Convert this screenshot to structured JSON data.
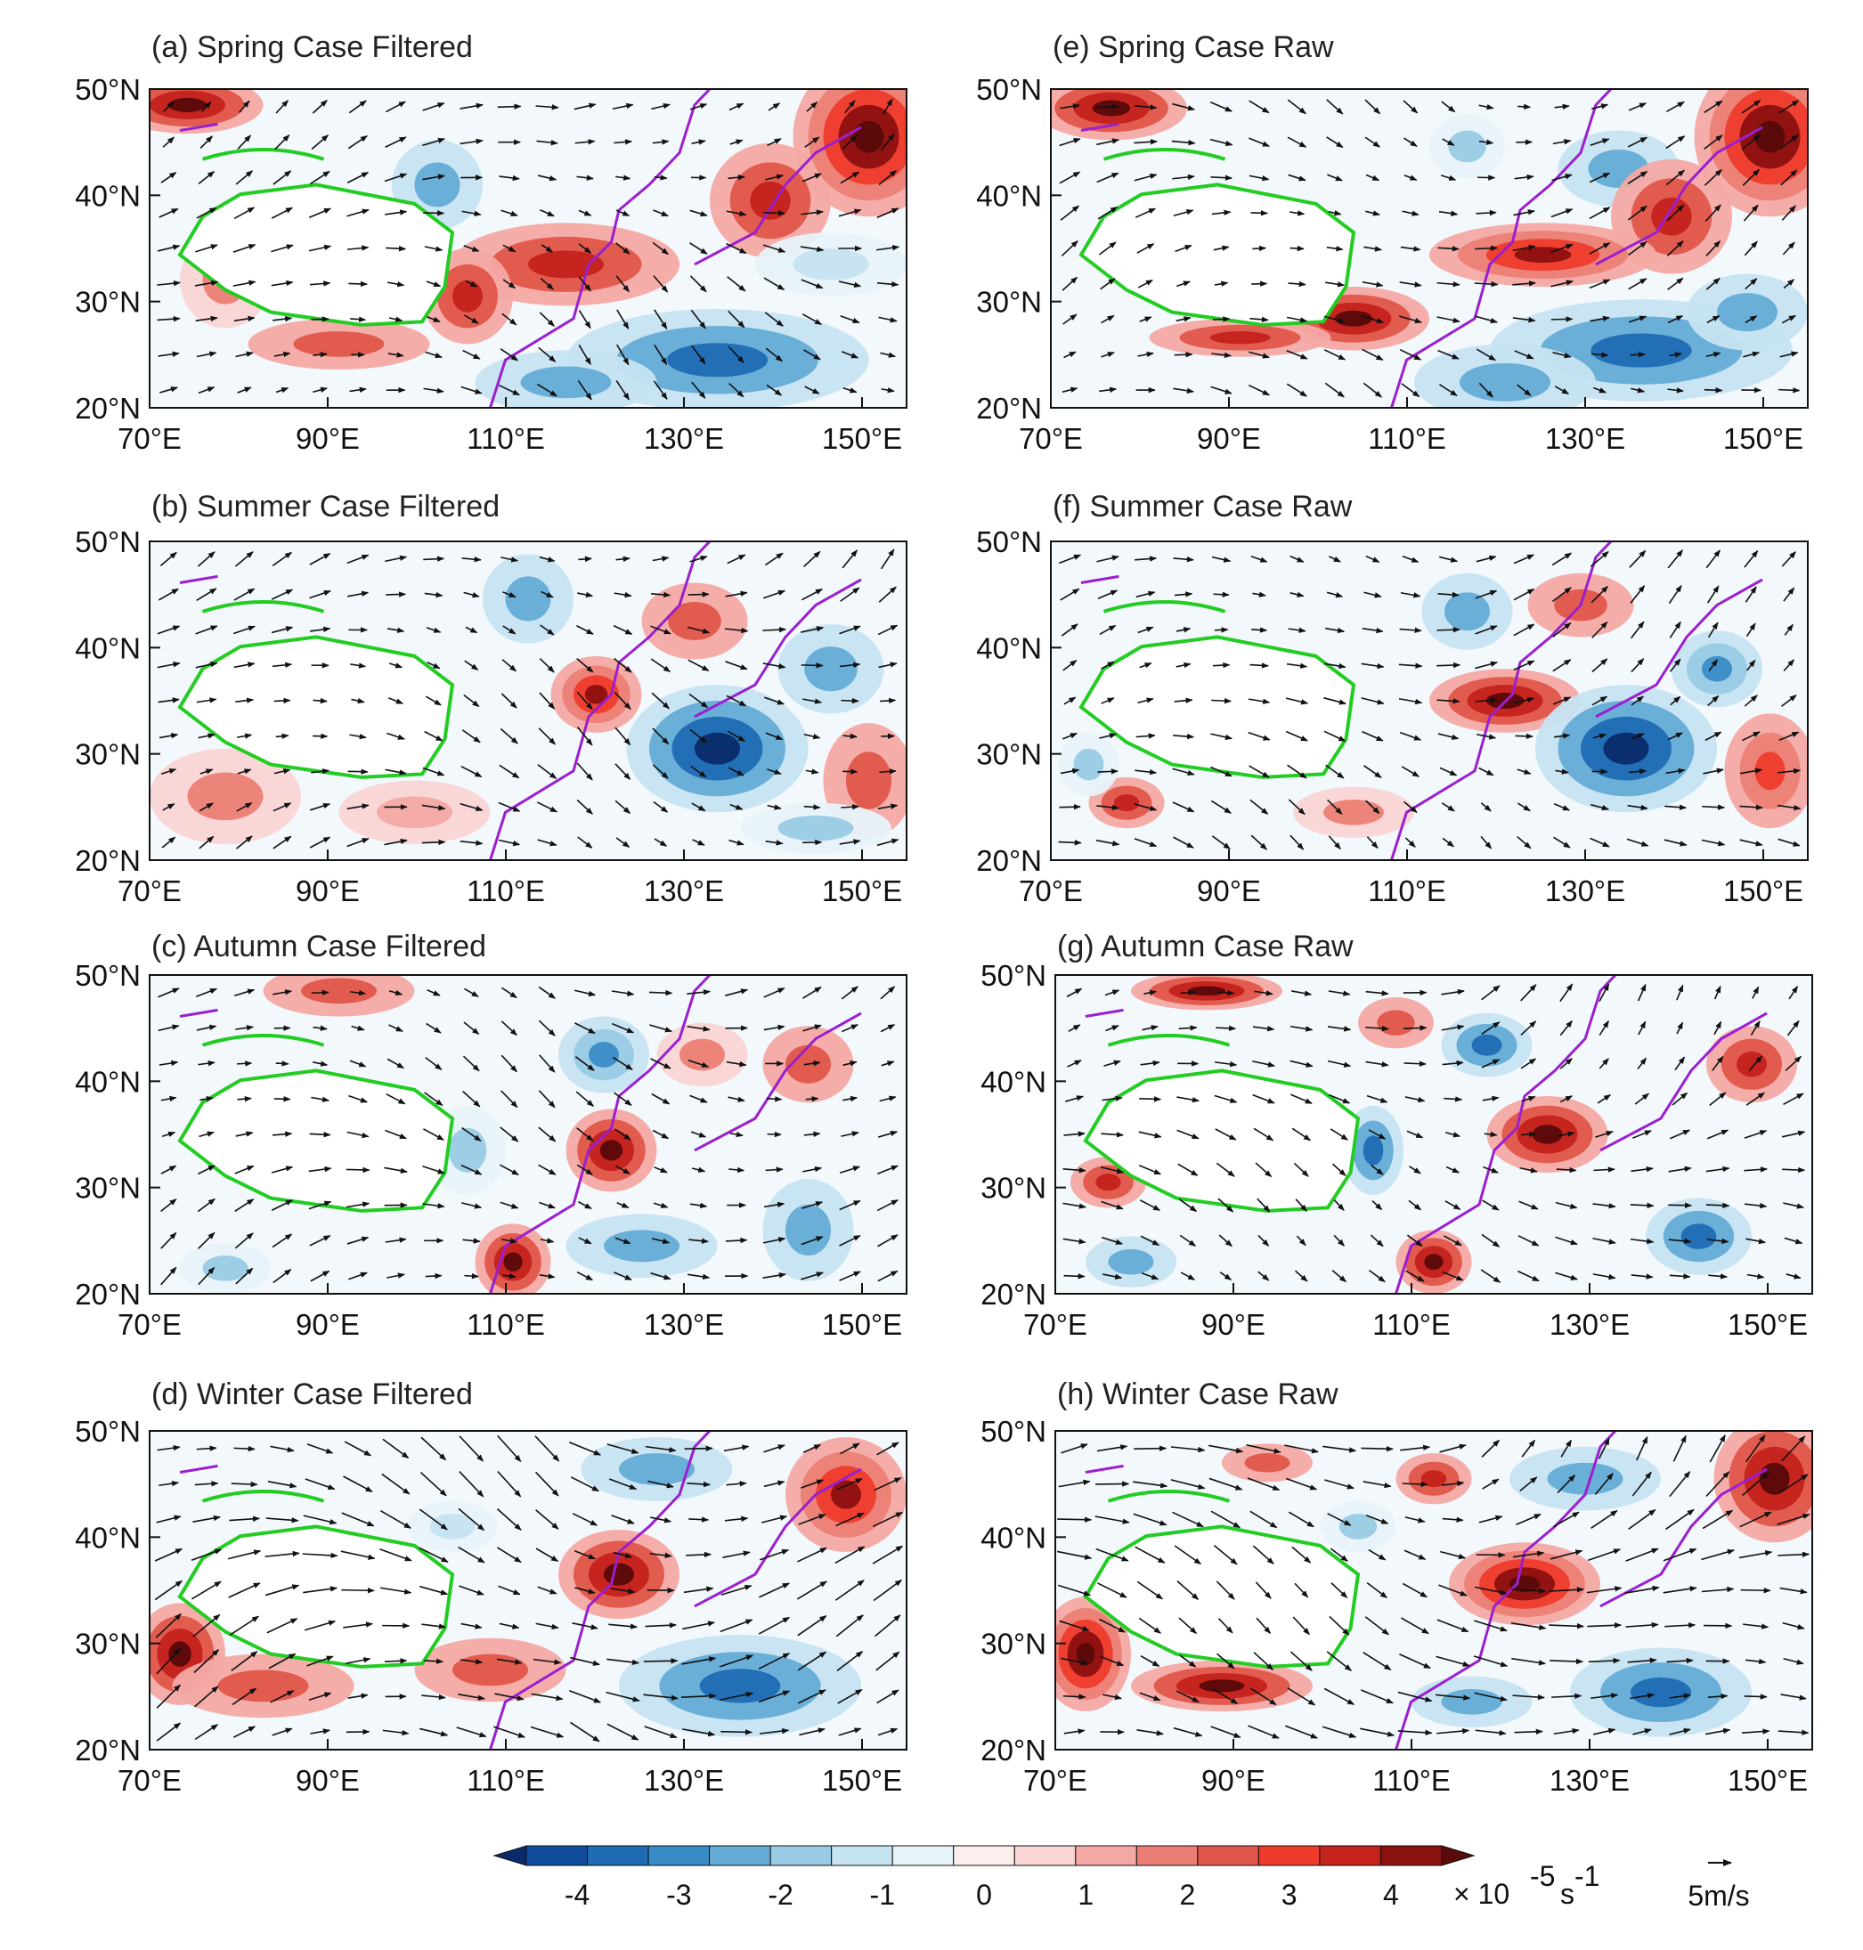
{
  "chart_data": {
    "type": "map-contour-vector",
    "panels": [
      {
        "id": "a",
        "title": "(a) Spring Case Filtered",
        "season": "Spring",
        "kind": "Filtered",
        "blobs": [
          [
            0.05,
            0.05,
            4,
            0.1,
            0.09
          ],
          [
            0.38,
            0.3,
            -2,
            0.06,
            0.14
          ],
          [
            0.82,
            0.35,
            3,
            0.08,
            0.18
          ],
          [
            0.95,
            0.15,
            4.5,
            0.1,
            0.25
          ],
          [
            0.55,
            0.55,
            3,
            0.15,
            0.13
          ],
          [
            0.42,
            0.65,
            3,
            0.06,
            0.15
          ],
          [
            0.25,
            0.8,
            2,
            0.12,
            0.08
          ],
          [
            0.75,
            0.85,
            -3,
            0.2,
            0.16
          ],
          [
            0.55,
            0.92,
            -2,
            0.12,
            0.1
          ],
          [
            0.1,
            0.6,
            1.5,
            0.06,
            0.15
          ],
          [
            0.9,
            0.55,
            -1,
            0.1,
            0.1
          ]
        ]
      },
      {
        "id": "e",
        "title": "(e) Spring Case Raw",
        "season": "Spring",
        "kind": "Raw",
        "blobs": [
          [
            0.08,
            0.06,
            4,
            0.1,
            0.1
          ],
          [
            0.55,
            0.18,
            -1.5,
            0.05,
            0.1
          ],
          [
            0.75,
            0.25,
            -2,
            0.08,
            0.12
          ],
          [
            0.82,
            0.4,
            3,
            0.08,
            0.18
          ],
          [
            0.95,
            0.15,
            4.5,
            0.1,
            0.25
          ],
          [
            0.65,
            0.52,
            3.5,
            0.15,
            0.1
          ],
          [
            0.4,
            0.72,
            4,
            0.1,
            0.1
          ],
          [
            0.25,
            0.78,
            3,
            0.12,
            0.06
          ],
          [
            0.78,
            0.82,
            -3,
            0.2,
            0.16
          ],
          [
            0.6,
            0.92,
            -2,
            0.12,
            0.12
          ],
          [
            0.92,
            0.7,
            -2,
            0.08,
            0.12
          ]
        ]
      },
      {
        "id": "b",
        "title": "(b) Summer Case Filtered",
        "season": "Summer",
        "kind": "Filtered",
        "blobs": [
          [
            0.5,
            0.18,
            -2,
            0.06,
            0.14
          ],
          [
            0.72,
            0.25,
            2,
            0.07,
            0.12
          ],
          [
            0.59,
            0.48,
            3.5,
            0.06,
            0.12
          ],
          [
            0.75,
            0.65,
            -4,
            0.12,
            0.2
          ],
          [
            0.9,
            0.4,
            -2,
            0.07,
            0.14
          ],
          [
            0.95,
            0.75,
            2,
            0.06,
            0.18
          ],
          [
            0.1,
            0.8,
            1.5,
            0.1,
            0.15
          ],
          [
            0.35,
            0.85,
            1,
            0.1,
            0.1
          ],
          [
            0.88,
            0.9,
            -1.5,
            0.1,
            0.08
          ]
        ]
      },
      {
        "id": "f",
        "title": "(f) Summer Case Raw",
        "season": "Summer",
        "kind": "Raw",
        "blobs": [
          [
            0.55,
            0.22,
            -2,
            0.06,
            0.12
          ],
          [
            0.7,
            0.2,
            2,
            0.07,
            0.1
          ],
          [
            0.6,
            0.5,
            4,
            0.1,
            0.1
          ],
          [
            0.76,
            0.65,
            -4,
            0.12,
            0.2
          ],
          [
            0.88,
            0.4,
            -2.5,
            0.06,
            0.12
          ],
          [
            0.95,
            0.72,
            2.5,
            0.06,
            0.18
          ],
          [
            0.1,
            0.82,
            3,
            0.05,
            0.08
          ],
          [
            0.05,
            0.7,
            -1.5,
            0.04,
            0.1
          ],
          [
            0.4,
            0.85,
            1.5,
            0.08,
            0.08
          ]
        ]
      },
      {
        "id": "c",
        "title": "(c) Autumn Case Filtered",
        "season": "Autumn",
        "kind": "Filtered",
        "blobs": [
          [
            0.6,
            0.25,
            -2.5,
            0.06,
            0.12
          ],
          [
            0.73,
            0.25,
            1.5,
            0.06,
            0.1
          ],
          [
            0.87,
            0.28,
            2,
            0.06,
            0.12
          ],
          [
            0.42,
            0.55,
            -1.5,
            0.05,
            0.14
          ],
          [
            0.61,
            0.55,
            4,
            0.06,
            0.13
          ],
          [
            0.48,
            0.9,
            4,
            0.05,
            0.12
          ],
          [
            0.65,
            0.85,
            -2,
            0.1,
            0.1
          ],
          [
            0.87,
            0.8,
            -2,
            0.06,
            0.16
          ],
          [
            0.1,
            0.92,
            -1.5,
            0.06,
            0.08
          ],
          [
            0.25,
            0.05,
            2,
            0.1,
            0.08
          ]
        ]
      },
      {
        "id": "g",
        "title": "(g) Autumn Case Raw",
        "season": "Autumn",
        "kind": "Raw",
        "blobs": [
          [
            0.2,
            0.05,
            4,
            0.1,
            0.06
          ],
          [
            0.57,
            0.22,
            -3,
            0.06,
            0.1
          ],
          [
            0.65,
            0.5,
            4,
            0.08,
            0.12
          ],
          [
            0.42,
            0.55,
            -3,
            0.04,
            0.14
          ],
          [
            0.5,
            0.9,
            4,
            0.05,
            0.1
          ],
          [
            0.85,
            0.82,
            -3,
            0.07,
            0.12
          ],
          [
            0.92,
            0.28,
            3,
            0.06,
            0.12
          ],
          [
            0.07,
            0.65,
            3,
            0.05,
            0.08
          ],
          [
            0.1,
            0.9,
            -2,
            0.06,
            0.08
          ],
          [
            0.45,
            0.15,
            2,
            0.05,
            0.08
          ]
        ]
      },
      {
        "id": "d",
        "title": "(d) Winter Case Filtered",
        "season": "Winter",
        "kind": "Filtered",
        "blobs": [
          [
            0.04,
            0.7,
            4,
            0.06,
            0.16
          ],
          [
            0.15,
            0.8,
            2,
            0.12,
            0.1
          ],
          [
            0.62,
            0.45,
            4,
            0.08,
            0.14
          ],
          [
            0.92,
            0.2,
            3.5,
            0.08,
            0.18
          ],
          [
            0.78,
            0.8,
            -3,
            0.16,
            0.16
          ],
          [
            0.45,
            0.75,
            2,
            0.1,
            0.1
          ],
          [
            0.67,
            0.12,
            -2,
            0.1,
            0.1
          ],
          [
            0.4,
            0.3,
            -1,
            0.06,
            0.08
          ]
        ]
      },
      {
        "id": "h",
        "title": "(h) Winter Case Raw",
        "season": "Winter",
        "kind": "Raw",
        "blobs": [
          [
            0.04,
            0.7,
            4.5,
            0.06,
            0.18
          ],
          [
            0.22,
            0.8,
            4,
            0.12,
            0.08
          ],
          [
            0.62,
            0.48,
            4.5,
            0.1,
            0.13
          ],
          [
            0.95,
            0.15,
            4,
            0.08,
            0.2
          ],
          [
            0.8,
            0.82,
            -3,
            0.12,
            0.14
          ],
          [
            0.5,
            0.15,
            3,
            0.05,
            0.08
          ],
          [
            0.7,
            0.15,
            -2,
            0.1,
            0.1
          ],
          [
            0.4,
            0.3,
            -1.5,
            0.05,
            0.08
          ],
          [
            0.55,
            0.85,
            -2,
            0.08,
            0.08
          ],
          [
            0.28,
            0.1,
            2,
            0.06,
            0.06
          ]
        ]
      }
    ],
    "lon_ticks": [
      "70°E",
      "90°E",
      "110°E",
      "130°E",
      "150°E"
    ],
    "lon_values": [
      70,
      90,
      110,
      130,
      150
    ],
    "lat_ticks": [
      "50°N",
      "40°N",
      "30°N",
      "20°N"
    ],
    "lat_values": [
      50,
      40,
      30,
      20
    ],
    "lon_range": [
      70,
      155
    ],
    "lat_range": [
      20,
      50
    ],
    "colorbar": {
      "labels": [
        "-4",
        "-3",
        "-2",
        "-1",
        "0",
        "1",
        "2",
        "3",
        "4"
      ],
      "label_values": [
        -4,
        -3,
        -2,
        -1,
        0,
        1,
        2,
        3,
        4
      ],
      "range": [
        -4.5,
        4.5
      ],
      "colors": [
        "#0b2a6b",
        "#0f4d9c",
        "#1f6cb4",
        "#3a8cc7",
        "#65acd6",
        "#9acbe5",
        "#c6e3f1",
        "#e7f3f9",
        "#fdeeee",
        "#fad5d5",
        "#f4a9a4",
        "#ec7f75",
        "#e0564a",
        "#ef3b2c",
        "#c4221b",
        "#8b1010",
        "#5a0a0a"
      ],
      "unit_label": "× 10",
      "unit_exp1": "-5",
      "unit_mid": "s",
      "unit_exp2": "-1"
    },
    "vector_reference": {
      "label": "5m/s",
      "value": 5
    },
    "colors": {
      "plateau_outline": "#22cc22",
      "coastline": "#9b1fcf",
      "vector": "#111111"
    }
  }
}
